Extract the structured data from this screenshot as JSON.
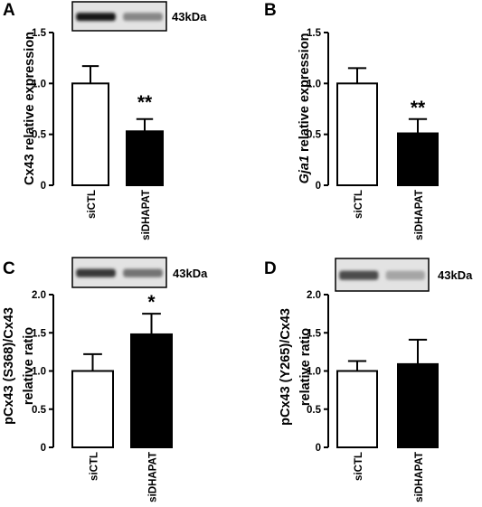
{
  "chart_data": [
    {
      "type": "bar",
      "panel": "A",
      "ylabel": "Cx43 relative expression",
      "categories": [
        "siCTL",
        "siDHAPAT"
      ],
      "values": [
        1.0,
        0.53
      ],
      "errors": [
        0.17,
        0.12
      ],
      "colors": [
        "#ffffff",
        "#000000"
      ],
      "ylim": [
        0,
        1.5
      ],
      "yticks": [
        "0",
        "0.5",
        "1.0",
        "1.5"
      ],
      "significance": [
        "",
        "**"
      ],
      "blot_label": "43kDa",
      "blot_intensity": [
        1.0,
        0.45
      ],
      "grid": false
    },
    {
      "type": "bar",
      "panel": "B",
      "ylabel_italic": "Gja1",
      "ylabel": " relative expression",
      "categories": [
        "siCTL",
        "siDHAPAT"
      ],
      "values": [
        1.0,
        0.51
      ],
      "errors": [
        0.15,
        0.14
      ],
      "colors": [
        "#ffffff",
        "#000000"
      ],
      "ylim": [
        0,
        1.5
      ],
      "yticks": [
        "0",
        "0.5",
        "1.0",
        "1.5"
      ],
      "significance": [
        "",
        "**"
      ],
      "grid": false
    },
    {
      "type": "bar",
      "panel": "C",
      "ylabel_lines": [
        "pCx43 (S368)/Cx43",
        "relative ratio"
      ],
      "categories": [
        "siCTL",
        "siDHAPAT"
      ],
      "values": [
        1.0,
        1.48
      ],
      "errors": [
        0.22,
        0.27
      ],
      "colors": [
        "#ffffff",
        "#000000"
      ],
      "ylim": [
        0,
        2.0
      ],
      "yticks": [
        "0",
        "0.5",
        "1.0",
        "1.5",
        "2.0"
      ],
      "significance": [
        "",
        "*"
      ],
      "blot_label": "43kDa",
      "blot_intensity": [
        0.85,
        0.55
      ],
      "grid": false
    },
    {
      "type": "bar",
      "panel": "D",
      "ylabel_lines": [
        "pCx43 (Y265)/Cx43",
        "relative ratio"
      ],
      "categories": [
        "siCTL",
        "siDHAPAT"
      ],
      "values": [
        1.0,
        1.09
      ],
      "errors": [
        0.13,
        0.32
      ],
      "colors": [
        "#ffffff",
        "#000000"
      ],
      "ylim": [
        0,
        2.0
      ],
      "yticks": [
        "0",
        "0.5",
        "1.0",
        "1.5",
        "2.0"
      ],
      "significance": [
        "",
        ""
      ],
      "blot_label": "43kDa",
      "blot_intensity": [
        0.75,
        0.3
      ],
      "grid": false
    }
  ]
}
